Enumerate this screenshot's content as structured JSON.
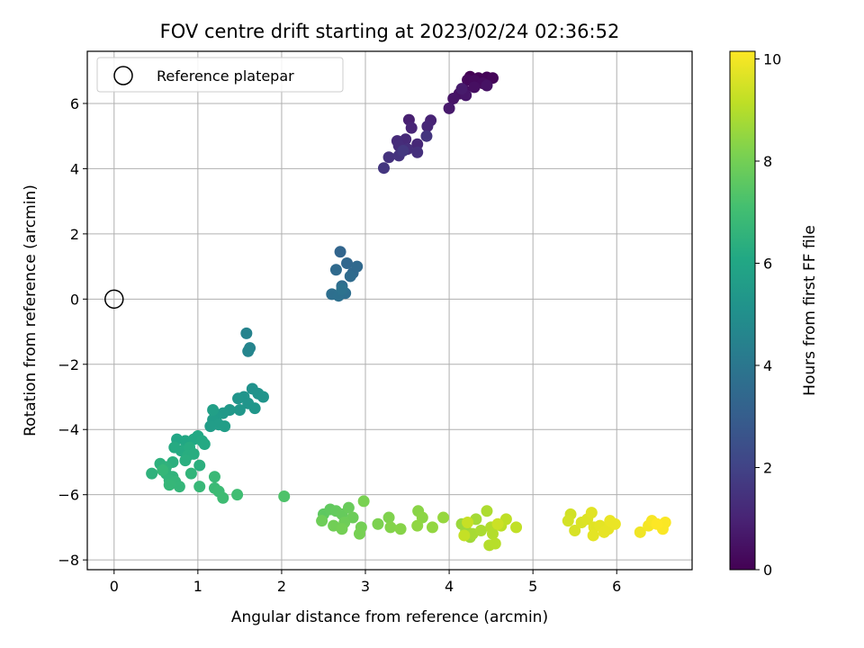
{
  "chart_data": {
    "type": "scatter",
    "title": "FOV centre drift starting at 2023/02/24 02:36:52",
    "xlabel": "Angular distance from reference (arcmin)",
    "ylabel": "Rotation from reference (arcmin)",
    "xlim": [
      -0.32,
      6.9
    ],
    "ylim": [
      -8.3,
      7.6
    ],
    "xticks": [
      0,
      1,
      2,
      3,
      4,
      5,
      6
    ],
    "yticks": [
      -8,
      -6,
      -4,
      -2,
      0,
      2,
      4,
      6
    ],
    "ytick_labels": [
      "−8",
      "−6",
      "−4",
      "−2",
      "0",
      "2",
      "4",
      "6"
    ],
    "grid": true,
    "legend": {
      "location": "upper-left",
      "entries": [
        "Reference platepar"
      ]
    },
    "colormap": "viridis",
    "colorbar": {
      "label": "Hours from first FF file",
      "range": [
        0,
        10.15
      ],
      "ticks": [
        0,
        2,
        4,
        6,
        8,
        10
      ]
    },
    "reference_point": {
      "x": 0,
      "y": 0,
      "label": "Reference platepar"
    },
    "series": [
      {
        "points": [
          [
            4.25,
            6.82,
            0.0
          ],
          [
            4.35,
            6.78,
            0.05
          ],
          [
            4.45,
            6.8,
            0.1
          ],
          [
            4.52,
            6.78,
            0.15
          ],
          [
            4.22,
            6.72,
            0.2
          ],
          [
            4.3,
            6.7,
            0.25
          ],
          [
            4.4,
            6.62,
            0.3
          ],
          [
            4.18,
            6.4,
            0.35
          ],
          [
            4.3,
            6.5,
            0.4
          ],
          [
            4.12,
            6.3,
            0.45
          ],
          [
            4.45,
            6.55,
            0.5
          ],
          [
            4.05,
            6.15,
            0.55
          ],
          [
            4.2,
            6.25,
            0.6
          ],
          [
            4.0,
            5.85,
            0.7
          ],
          [
            4.15,
            6.45,
            0.75
          ]
        ]
      },
      {
        "points": [
          [
            3.52,
            5.5,
            0.9
          ],
          [
            3.78,
            5.48,
            1.0
          ],
          [
            3.55,
            5.25,
            1.05
          ],
          [
            3.74,
            5.3,
            1.1
          ],
          [
            3.62,
            4.75,
            1.15
          ],
          [
            3.48,
            4.9,
            1.2
          ],
          [
            3.38,
            4.85,
            1.25
          ],
          [
            3.4,
            4.7,
            1.3
          ],
          [
            3.5,
            4.6,
            1.35
          ],
          [
            3.62,
            4.5,
            1.4
          ],
          [
            3.28,
            4.35,
            1.45
          ],
          [
            3.4,
            4.4,
            1.5
          ],
          [
            3.73,
            5.0,
            1.55
          ],
          [
            3.22,
            4.02,
            1.6
          ],
          [
            3.45,
            4.55,
            1.65
          ]
        ]
      },
      {
        "points": [
          [
            2.7,
            1.45,
            3.3
          ],
          [
            2.78,
            1.1,
            3.35
          ],
          [
            2.85,
            0.8,
            3.4
          ],
          [
            2.9,
            1.0,
            3.45
          ],
          [
            2.65,
            0.9,
            3.5
          ],
          [
            2.82,
            0.7,
            3.55
          ],
          [
            2.72,
            0.4,
            3.6
          ],
          [
            2.76,
            0.18,
            3.65
          ],
          [
            2.6,
            0.15,
            3.7
          ],
          [
            2.68,
            0.1,
            3.75
          ],
          [
            2.72,
            0.3,
            3.8
          ]
        ]
      },
      {
        "points": [
          [
            1.58,
            -1.05,
            4.5
          ],
          [
            1.62,
            -1.5,
            4.55
          ],
          [
            1.6,
            -1.6,
            4.6
          ],
          [
            1.65,
            -2.75,
            5.1
          ],
          [
            1.72,
            -2.9,
            5.15
          ],
          [
            1.78,
            -3.0,
            5.2
          ],
          [
            1.55,
            -3.0,
            5.2
          ],
          [
            1.48,
            -3.05,
            5.25
          ],
          [
            1.6,
            -3.2,
            5.25
          ],
          [
            1.68,
            -3.35,
            5.3
          ],
          [
            1.5,
            -3.4,
            5.35
          ],
          [
            1.38,
            -3.4,
            5.4
          ],
          [
            1.3,
            -3.5,
            5.45
          ],
          [
            1.22,
            -3.6,
            5.5
          ],
          [
            1.18,
            -3.7,
            5.55
          ],
          [
            1.25,
            -3.85,
            5.6
          ],
          [
            1.15,
            -3.9,
            5.6
          ],
          [
            1.32,
            -3.9,
            5.65
          ],
          [
            1.18,
            -3.4,
            5.7
          ]
        ]
      },
      {
        "points": [
          [
            0.75,
            -4.3,
            6.0
          ],
          [
            0.85,
            -4.35,
            6.05
          ],
          [
            1.0,
            -4.2,
            6.1
          ],
          [
            0.95,
            -4.3,
            6.1
          ],
          [
            1.05,
            -4.35,
            6.15
          ],
          [
            1.08,
            -4.45,
            6.15
          ],
          [
            0.72,
            -4.55,
            6.2
          ],
          [
            0.8,
            -4.65,
            6.2
          ],
          [
            0.9,
            -4.55,
            6.25
          ],
          [
            0.88,
            -4.8,
            6.3
          ],
          [
            0.95,
            -4.75,
            6.3
          ],
          [
            0.85,
            -4.95,
            6.35
          ],
          [
            0.7,
            -5.0,
            6.4
          ],
          [
            1.02,
            -5.1,
            6.4
          ],
          [
            0.55,
            -5.05,
            6.45
          ],
          [
            0.62,
            -5.15,
            6.5
          ],
          [
            0.45,
            -5.35,
            6.5
          ],
          [
            0.62,
            -5.35,
            6.55
          ],
          [
            0.7,
            -5.45,
            6.55
          ],
          [
            0.92,
            -5.35,
            6.6
          ],
          [
            0.66,
            -5.55,
            6.6
          ],
          [
            0.73,
            -5.6,
            6.65
          ],
          [
            0.78,
            -5.75,
            6.65
          ],
          [
            0.66,
            -5.7,
            6.7
          ],
          [
            0.58,
            -5.25,
            6.7
          ],
          [
            1.02,
            -5.75,
            6.75
          ],
          [
            1.2,
            -5.45,
            6.8
          ],
          [
            1.2,
            -5.8,
            6.85
          ],
          [
            1.25,
            -5.9,
            6.9
          ],
          [
            1.3,
            -6.1,
            6.95
          ],
          [
            1.47,
            -6.0,
            7.0
          ],
          [
            2.03,
            -6.05,
            7.3
          ]
        ]
      },
      {
        "points": [
          [
            2.5,
            -6.6,
            7.6
          ],
          [
            2.58,
            -6.45,
            7.65
          ],
          [
            2.65,
            -6.5,
            7.7
          ],
          [
            2.72,
            -6.6,
            7.75
          ],
          [
            2.8,
            -6.4,
            7.8
          ],
          [
            2.85,
            -6.7,
            7.85
          ],
          [
            2.48,
            -6.8,
            7.9
          ],
          [
            2.75,
            -6.85,
            7.9
          ],
          [
            2.62,
            -6.95,
            7.95
          ],
          [
            2.72,
            -7.05,
            8.0
          ],
          [
            2.95,
            -7.0,
            8.0
          ],
          [
            2.93,
            -7.2,
            8.05
          ],
          [
            2.98,
            -6.2,
            8.1
          ],
          [
            3.15,
            -6.9,
            8.15
          ],
          [
            3.28,
            -6.7,
            8.2
          ],
          [
            3.3,
            -7.0,
            8.25
          ],
          [
            3.42,
            -7.05,
            8.3
          ],
          [
            3.63,
            -6.5,
            8.35
          ],
          [
            3.68,
            -6.7,
            8.4
          ],
          [
            3.62,
            -6.95,
            8.45
          ],
          [
            3.8,
            -7.0,
            8.5
          ],
          [
            3.93,
            -6.7,
            8.55
          ]
        ]
      },
      {
        "points": [
          [
            4.15,
            -6.9,
            8.6
          ],
          [
            4.2,
            -7.1,
            8.65
          ],
          [
            4.25,
            -7.3,
            8.7
          ],
          [
            4.32,
            -6.75,
            8.75
          ],
          [
            4.28,
            -7.2,
            8.8
          ],
          [
            4.38,
            -7.1,
            8.85
          ],
          [
            4.45,
            -6.5,
            8.9
          ],
          [
            4.5,
            -7.0,
            8.95
          ],
          [
            4.52,
            -7.2,
            9.0
          ],
          [
            4.48,
            -7.55,
            9.0
          ],
          [
            4.55,
            -7.5,
            9.05
          ],
          [
            4.62,
            -6.95,
            9.1
          ],
          [
            4.68,
            -6.75,
            9.15
          ],
          [
            4.8,
            -7.0,
            9.2
          ],
          [
            4.18,
            -7.25,
            9.25
          ],
          [
            4.22,
            -6.85,
            9.3
          ],
          [
            4.58,
            -6.9,
            9.35
          ]
        ]
      },
      {
        "points": [
          [
            5.45,
            -6.6,
            9.45
          ],
          [
            5.42,
            -6.8,
            9.5
          ],
          [
            5.5,
            -7.1,
            9.55
          ],
          [
            5.58,
            -6.85,
            9.6
          ],
          [
            5.65,
            -6.75,
            9.65
          ],
          [
            5.7,
            -6.55,
            9.7
          ],
          [
            5.73,
            -7.0,
            9.7
          ],
          [
            5.8,
            -6.95,
            9.75
          ],
          [
            5.72,
            -7.25,
            9.75
          ],
          [
            5.85,
            -7.15,
            9.8
          ],
          [
            5.9,
            -7.05,
            9.8
          ],
          [
            5.92,
            -6.8,
            9.85
          ],
          [
            5.98,
            -6.9,
            9.85
          ],
          [
            6.28,
            -7.15,
            9.95
          ],
          [
            6.38,
            -6.95,
            10.0
          ],
          [
            6.42,
            -6.8,
            10.05
          ],
          [
            6.55,
            -7.05,
            10.1
          ],
          [
            6.58,
            -6.85,
            10.1
          ],
          [
            6.48,
            -6.9,
            10.15
          ]
        ]
      }
    ]
  }
}
